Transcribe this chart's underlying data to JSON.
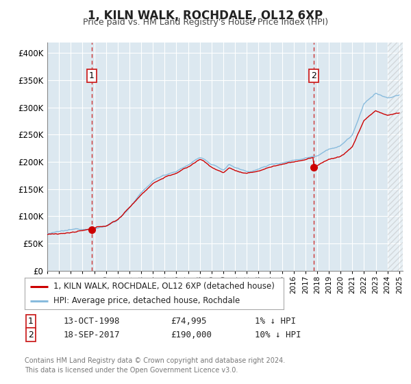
{
  "title": "1, KILN WALK, ROCHDALE, OL12 6XP",
  "subtitle": "Price paid vs. HM Land Registry's House Price Index (HPI)",
  "background_color": "#ffffff",
  "plot_bg_color": "#dce8f0",
  "grid_color": "#ffffff",
  "ylim": [
    0,
    420000
  ],
  "yticks": [
    0,
    50000,
    100000,
    150000,
    200000,
    250000,
    300000,
    350000,
    400000
  ],
  "xlim_start": 1995.0,
  "xlim_end": 2025.3,
  "hatch_start": 2024.0,
  "xticks": [
    1995,
    1996,
    1997,
    1998,
    1999,
    2000,
    2001,
    2002,
    2003,
    2004,
    2005,
    2006,
    2007,
    2008,
    2009,
    2010,
    2011,
    2012,
    2013,
    2014,
    2015,
    2016,
    2017,
    2018,
    2019,
    2020,
    2021,
    2022,
    2023,
    2024,
    2025
  ],
  "hpi_color": "#88bbdd",
  "price_color": "#cc0000",
  "sale1_x": 1998.79,
  "sale1_y": 74995,
  "sale2_x": 2017.72,
  "sale2_y": 190000,
  "vline_color": "#cc3333",
  "marker_color": "#cc0000",
  "legend_label_price": "1, KILN WALK, ROCHDALE, OL12 6XP (detached house)",
  "legend_label_hpi": "HPI: Average price, detached house, Rochdale",
  "note1_date": "13-OCT-1998",
  "note1_price": "£74,995",
  "note1_hpi": "1% ↓ HPI",
  "note2_date": "18-SEP-2017",
  "note2_price": "£190,000",
  "note2_hpi": "10% ↓ HPI",
  "footer": "Contains HM Land Registry data © Crown copyright and database right 2024.\nThis data is licensed under the Open Government Licence v3.0."
}
